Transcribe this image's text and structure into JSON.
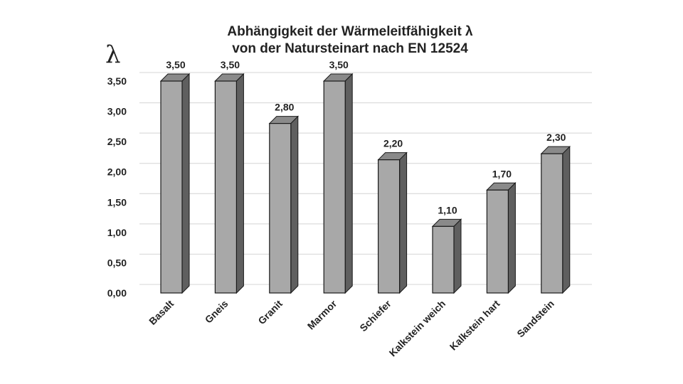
{
  "chart_data": {
    "type": "bar",
    "title_lines": [
      "Abhängigkeit der Wärmeleitfähigkeit λ",
      "von der Natursteinart nach EN 12524"
    ],
    "ylabel": "λ",
    "xlabel": "",
    "categories": [
      "Basalt",
      "Gneis",
      "Granit",
      "Marmor",
      "Schiefer",
      "Kalkstein weich",
      "Kalkstein hart",
      "Sandstein"
    ],
    "values": [
      3.5,
      3.5,
      2.8,
      3.5,
      2.2,
      1.1,
      1.7,
      2.3
    ],
    "value_labels": [
      "3,50",
      "3,50",
      "2,80",
      "3,50",
      "2,20",
      "1,10",
      "1,70",
      "2,30"
    ],
    "ylim": [
      0,
      3.5
    ],
    "yticks": [
      0,
      0.5,
      1,
      1.5,
      2,
      2.5,
      3,
      3.5
    ],
    "ytick_labels": [
      "0,00",
      "0,50",
      "1,00",
      "1,50",
      "2,00",
      "2,50",
      "3,00",
      "3,50"
    ],
    "grid": true,
    "legend": "none",
    "style": "3d-column",
    "colors": {
      "bar_front": "#a8a8a8",
      "bar_side": "#5f5f5f",
      "bar_top": "#8a8a8a",
      "outline": "#1a1a1a"
    }
  }
}
